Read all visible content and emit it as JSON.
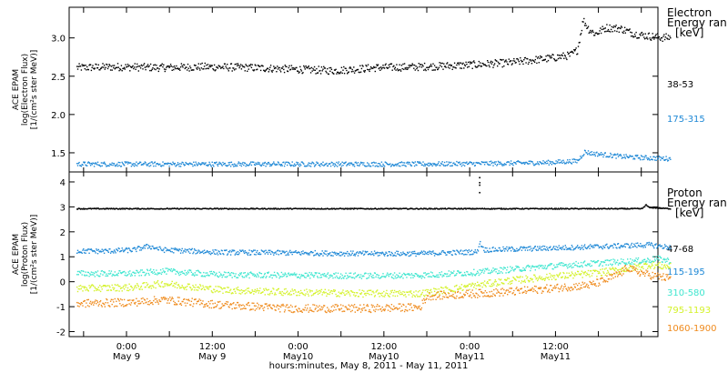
{
  "chart_data": [
    {
      "type": "scatter",
      "panel": "electron",
      "ylabel": [
        "ACE EPAM",
        "log(Electron Flux)",
        "[1/(cm²s ster MeV)]"
      ],
      "ylim": [
        1.25,
        3.4
      ],
      "yticks": [
        1.5,
        2.0,
        2.5,
        3.0
      ],
      "ytick_labels": [
        "1.5",
        "2.0",
        "2.5",
        "3.0"
      ],
      "legend_title": [
        "Electron",
        "Energy ran",
        "[keV]"
      ],
      "x_hours": [
        0,
        84
      ],
      "series": [
        {
          "name": "38-53",
          "color": "#000000",
          "points": [
            [
              0,
              2.62
            ],
            [
              6,
              2.63
            ],
            [
              12,
              2.62
            ],
            [
              18,
              2.63
            ],
            [
              24,
              2.62
            ],
            [
              30,
              2.6
            ],
            [
              36,
              2.58
            ],
            [
              42,
              2.62
            ],
            [
              48,
              2.63
            ],
            [
              54,
              2.65
            ],
            [
              60,
              2.68
            ],
            [
              66,
              2.74
            ],
            [
              69,
              2.78
            ],
            [
              70,
              2.85
            ],
            [
              70.8,
              3.24
            ],
            [
              71.6,
              3.12
            ],
            [
              72.5,
              3.06
            ],
            [
              74,
              3.14
            ],
            [
              76,
              3.13
            ],
            [
              78,
              3.06
            ],
            [
              80,
              3.03
            ],
            [
              82,
              3.01
            ],
            [
              83,
              3.02
            ]
          ]
        },
        {
          "name": "175-315",
          "color": "#1e88d6",
          "points": [
            [
              0,
              1.36
            ],
            [
              12,
              1.36
            ],
            [
              24,
              1.36
            ],
            [
              36,
              1.36
            ],
            [
              48,
              1.36
            ],
            [
              60,
              1.37
            ],
            [
              66,
              1.38
            ],
            [
              70,
              1.4
            ],
            [
              71,
              1.52
            ],
            [
              72,
              1.5
            ],
            [
              76,
              1.46
            ],
            [
              80,
              1.44
            ],
            [
              83,
              1.43
            ]
          ]
        }
      ]
    },
    {
      "type": "scatter",
      "panel": "proton",
      "ylabel": [
        "ACE EPAM",
        "log(Proton Flux)",
        "[1/(cm²s ster MeV)]"
      ],
      "ylim": [
        -2.2,
        4.4
      ],
      "yticks": [
        -2,
        -1,
        0,
        1,
        2,
        3,
        4
      ],
      "ytick_labels": [
        "-2",
        "-1",
        "0",
        "1",
        "2",
        "3",
        "4"
      ],
      "legend_title": [
        "Proton",
        "Energy ran",
        "[keV]"
      ],
      "x_hours": [
        0,
        84
      ],
      "series": [
        {
          "name": "47-68",
          "color": "#000000",
          "points": [
            [
              0,
              2.95
            ],
            [
              12,
              2.95
            ],
            [
              24,
              2.95
            ],
            [
              36,
              2.95
            ],
            [
              48,
              2.95
            ],
            [
              55,
              2.95
            ],
            [
              56.3,
              2.95
            ],
            [
              57,
              2.95
            ],
            [
              68,
              2.95
            ],
            [
              79,
              2.95
            ],
            [
              79.6,
              3.1
            ],
            [
              80,
              3.0
            ],
            [
              83,
              2.95
            ]
          ],
          "spike": {
            "x": 56.3,
            "values": [
              3.6,
              4.0,
              4.2,
              3.9
            ]
          }
        },
        {
          "name": "115-195",
          "color": "#1e88d6",
          "points": [
            [
              0,
              1.25
            ],
            [
              4,
              1.25
            ],
            [
              8,
              1.3
            ],
            [
              10,
              1.45
            ],
            [
              12,
              1.3
            ],
            [
              20,
              1.2
            ],
            [
              30,
              1.18
            ],
            [
              40,
              1.15
            ],
            [
              48,
              1.15
            ],
            [
              56,
              1.22
            ],
            [
              56.3,
              1.6
            ],
            [
              57,
              1.3
            ],
            [
              64,
              1.35
            ],
            [
              72,
              1.42
            ],
            [
              78,
              1.48
            ],
            [
              80,
              1.5
            ],
            [
              83,
              1.4
            ]
          ]
        },
        {
          "name": "310-580",
          "color": "#3fe6cf",
          "points": [
            [
              0,
              0.35
            ],
            [
              8,
              0.35
            ],
            [
              12,
              0.45
            ],
            [
              20,
              0.3
            ],
            [
              30,
              0.28
            ],
            [
              40,
              0.26
            ],
            [
              48,
              0.28
            ],
            [
              56,
              0.4
            ],
            [
              64,
              0.6
            ],
            [
              70,
              0.72
            ],
            [
              76,
              0.82
            ],
            [
              80,
              0.88
            ],
            [
              81,
              0.95
            ],
            [
              83,
              0.85
            ]
          ]
        },
        {
          "name": "795-1193",
          "color": "#d4f22a",
          "points": [
            [
              0,
              -0.25
            ],
            [
              8,
              -0.2
            ],
            [
              12,
              -0.05
            ],
            [
              20,
              -0.3
            ],
            [
              30,
              -0.4
            ],
            [
              40,
              -0.45
            ],
            [
              48,
              -0.45
            ],
            [
              54,
              -0.2
            ],
            [
              60,
              0.05
            ],
            [
              66,
              0.22
            ],
            [
              72,
              0.35
            ],
            [
              76,
              0.5
            ],
            [
              78,
              0.6
            ],
            [
              80,
              0.7
            ],
            [
              83,
              0.62
            ]
          ]
        },
        {
          "name": "1060-1900",
          "color": "#ef8a1c",
          "points": [
            [
              0,
              -0.85
            ],
            [
              8,
              -0.8
            ],
            [
              12,
              -0.7
            ],
            [
              20,
              -0.9
            ],
            [
              30,
              -1.05
            ],
            [
              40,
              -1.05
            ],
            [
              48,
              -1.0
            ],
            [
              49,
              -0.55
            ],
            [
              56,
              -0.45
            ],
            [
              62,
              -0.35
            ],
            [
              68,
              -0.2
            ],
            [
              72,
              -0.1
            ],
            [
              74,
              0.1
            ],
            [
              76,
              0.35
            ],
            [
              77,
              0.6
            ],
            [
              78,
              0.45
            ],
            [
              80,
              0.3
            ],
            [
              83,
              0.15
            ]
          ]
        }
      ]
    }
  ],
  "x_axis": {
    "tick_labels": [
      {
        "hours": 7,
        "time": "0:00",
        "date": "May 9"
      },
      {
        "hours": 19,
        "time": "12:00",
        "date": "May 9"
      },
      {
        "hours": 31,
        "time": "0:00",
        "date": "May10"
      },
      {
        "hours": 43,
        "time": "12:00",
        "date": "May10"
      },
      {
        "hours": 55,
        "time": "0:00",
        "date": "May11"
      },
      {
        "hours": 67,
        "time": "12:00",
        "date": "May11"
      }
    ],
    "title": "hours:minutes, May  8, 2011 - May 11, 2011"
  }
}
